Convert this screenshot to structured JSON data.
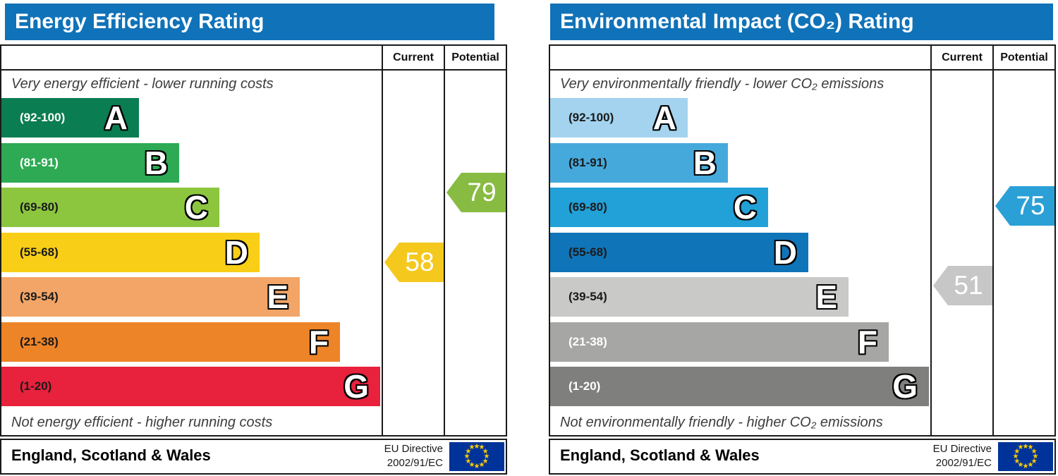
{
  "page": {
    "background": "#ffffff"
  },
  "panels": [
    {
      "title": "Energy Efficiency Rating",
      "title_bg": "#1072b8",
      "title_color": "#ffffff",
      "columns": {
        "current": "Current",
        "potential": "Potential"
      },
      "top_note": "Very energy efficient - lower running costs",
      "bottom_note": "Not energy efficient - higher running costs",
      "bands": [
        {
          "letter": "A",
          "range_label": "(92-100)",
          "min": 92,
          "max": 100,
          "color": "#0b7d52",
          "text_color": "#ffffff"
        },
        {
          "letter": "B",
          "range_label": "(81-91)",
          "min": 81,
          "max": 91,
          "color": "#2daa53",
          "text_color": "#ffffff"
        },
        {
          "letter": "C",
          "range_label": "(69-80)",
          "min": 69,
          "max": 80,
          "color": "#8cc63f",
          "text_color": "#1a1a1a"
        },
        {
          "letter": "D",
          "range_label": "(55-68)",
          "min": 55,
          "max": 68,
          "color": "#f8ce17",
          "text_color": "#1a1a1a"
        },
        {
          "letter": "E",
          "range_label": "(39-54)",
          "min": 39,
          "max": 54,
          "color": "#f2a567",
          "text_color": "#1a1a1a"
        },
        {
          "letter": "F",
          "range_label": "(21-38)",
          "min": 21,
          "max": 38,
          "color": "#ee8428",
          "text_color": "#1a1a1a"
        },
        {
          "letter": "G",
          "range_label": "(1-20)",
          "min": 1,
          "max": 20,
          "color": "#e8213c",
          "text_color": "#1a1a1a"
        }
      ],
      "current": {
        "value": "58",
        "band": "D",
        "color": "#f4c81d",
        "text_color": "#ffffff"
      },
      "potential": {
        "value": "79",
        "band": "C",
        "color": "#88bb41",
        "text_color": "#ffffff"
      },
      "footer": {
        "region": "England, Scotland & Wales",
        "directive_line1": "EU Directive",
        "directive_line2": "2002/91/EC",
        "flag_bg": "#003399",
        "star_color": "#ffcc00"
      }
    },
    {
      "title": "Environmental Impact (CO₂) Rating",
      "title_bg": "#1072b8",
      "title_color": "#ffffff",
      "columns": {
        "current": "Current",
        "potential": "Potential"
      },
      "top_note": "Very environmentally friendly - lower CO₂ emissions",
      "bottom_note": "Not environmentally friendly - higher CO₂ emissions",
      "bands": [
        {
          "letter": "A",
          "range_label": "(92-100)",
          "min": 92,
          "max": 100,
          "color": "#a3d3ee",
          "text_color": "#1a1a1a"
        },
        {
          "letter": "B",
          "range_label": "(81-91)",
          "min": 81,
          "max": 91,
          "color": "#46a9dc",
          "text_color": "#1a1a1a"
        },
        {
          "letter": "C",
          "range_label": "(69-80)",
          "min": 69,
          "max": 80,
          "color": "#22a0d8",
          "text_color": "#1a1a1a"
        },
        {
          "letter": "D",
          "range_label": "(55-68)",
          "min": 55,
          "max": 68,
          "color": "#1074b8",
          "text_color": "#1a1a1a"
        },
        {
          "letter": "E",
          "range_label": "(39-54)",
          "min": 39,
          "max": 54,
          "color": "#c9c9c7",
          "text_color": "#1a1a1a"
        },
        {
          "letter": "F",
          "range_label": "(21-38)",
          "min": 21,
          "max": 38,
          "color": "#a6a6a4",
          "text_color": "#ffffff"
        },
        {
          "letter": "G",
          "range_label": "(1-20)",
          "min": 1,
          "max": 20,
          "color": "#7f7f7d",
          "text_color": "#ffffff"
        }
      ],
      "current": {
        "value": "51",
        "band": "E",
        "color": "#c7c7c7",
        "text_color": "#ffffff"
      },
      "potential": {
        "value": "75",
        "band": "C",
        "color": "#2ba0d7",
        "text_color": "#ffffff"
      },
      "footer": {
        "region": "England, Scotland & Wales",
        "directive_line1": "EU Directive",
        "directive_line2": "2002/91/EC",
        "flag_bg": "#003399",
        "star_color": "#ffcc00"
      }
    }
  ],
  "chart_data": [
    {
      "type": "bar",
      "orientation": "horizontal",
      "title": "Energy Efficiency Rating",
      "categories": [
        "A (92-100)",
        "B (81-91)",
        "C (69-80)",
        "D (55-68)",
        "E (39-54)",
        "F (21-38)",
        "G (1-20)"
      ],
      "band_ranges": [
        [
          92,
          100
        ],
        [
          81,
          91
        ],
        [
          69,
          80
        ],
        [
          55,
          68
        ],
        [
          39,
          54
        ],
        [
          21,
          38
        ],
        [
          1,
          20
        ]
      ],
      "markers": [
        {
          "name": "Current",
          "value": 58,
          "band": "D"
        },
        {
          "name": "Potential",
          "value": 79,
          "band": "C"
        }
      ],
      "scale": {
        "min": 1,
        "max": 100
      },
      "top_annotation": "Very energy efficient - lower running costs",
      "bottom_annotation": "Not energy efficient - higher running costs",
      "footer": "England, Scotland & Wales — EU Directive 2002/91/EC"
    },
    {
      "type": "bar",
      "orientation": "horizontal",
      "title": "Environmental Impact (CO₂) Rating",
      "categories": [
        "A (92-100)",
        "B (81-91)",
        "C (69-80)",
        "D (55-68)",
        "E (39-54)",
        "F (21-38)",
        "G (1-20)"
      ],
      "band_ranges": [
        [
          92,
          100
        ],
        [
          81,
          91
        ],
        [
          69,
          80
        ],
        [
          55,
          68
        ],
        [
          39,
          54
        ],
        [
          21,
          38
        ],
        [
          1,
          20
        ]
      ],
      "markers": [
        {
          "name": "Current",
          "value": 51,
          "band": "E"
        },
        {
          "name": "Potential",
          "value": 75,
          "band": "C"
        }
      ],
      "scale": {
        "min": 1,
        "max": 100
      },
      "top_annotation": "Very environmentally friendly - lower CO₂ emissions",
      "bottom_annotation": "Not environmentally friendly - higher CO₂ emissions",
      "footer": "England, Scotland & Wales — EU Directive 2002/91/EC"
    }
  ]
}
